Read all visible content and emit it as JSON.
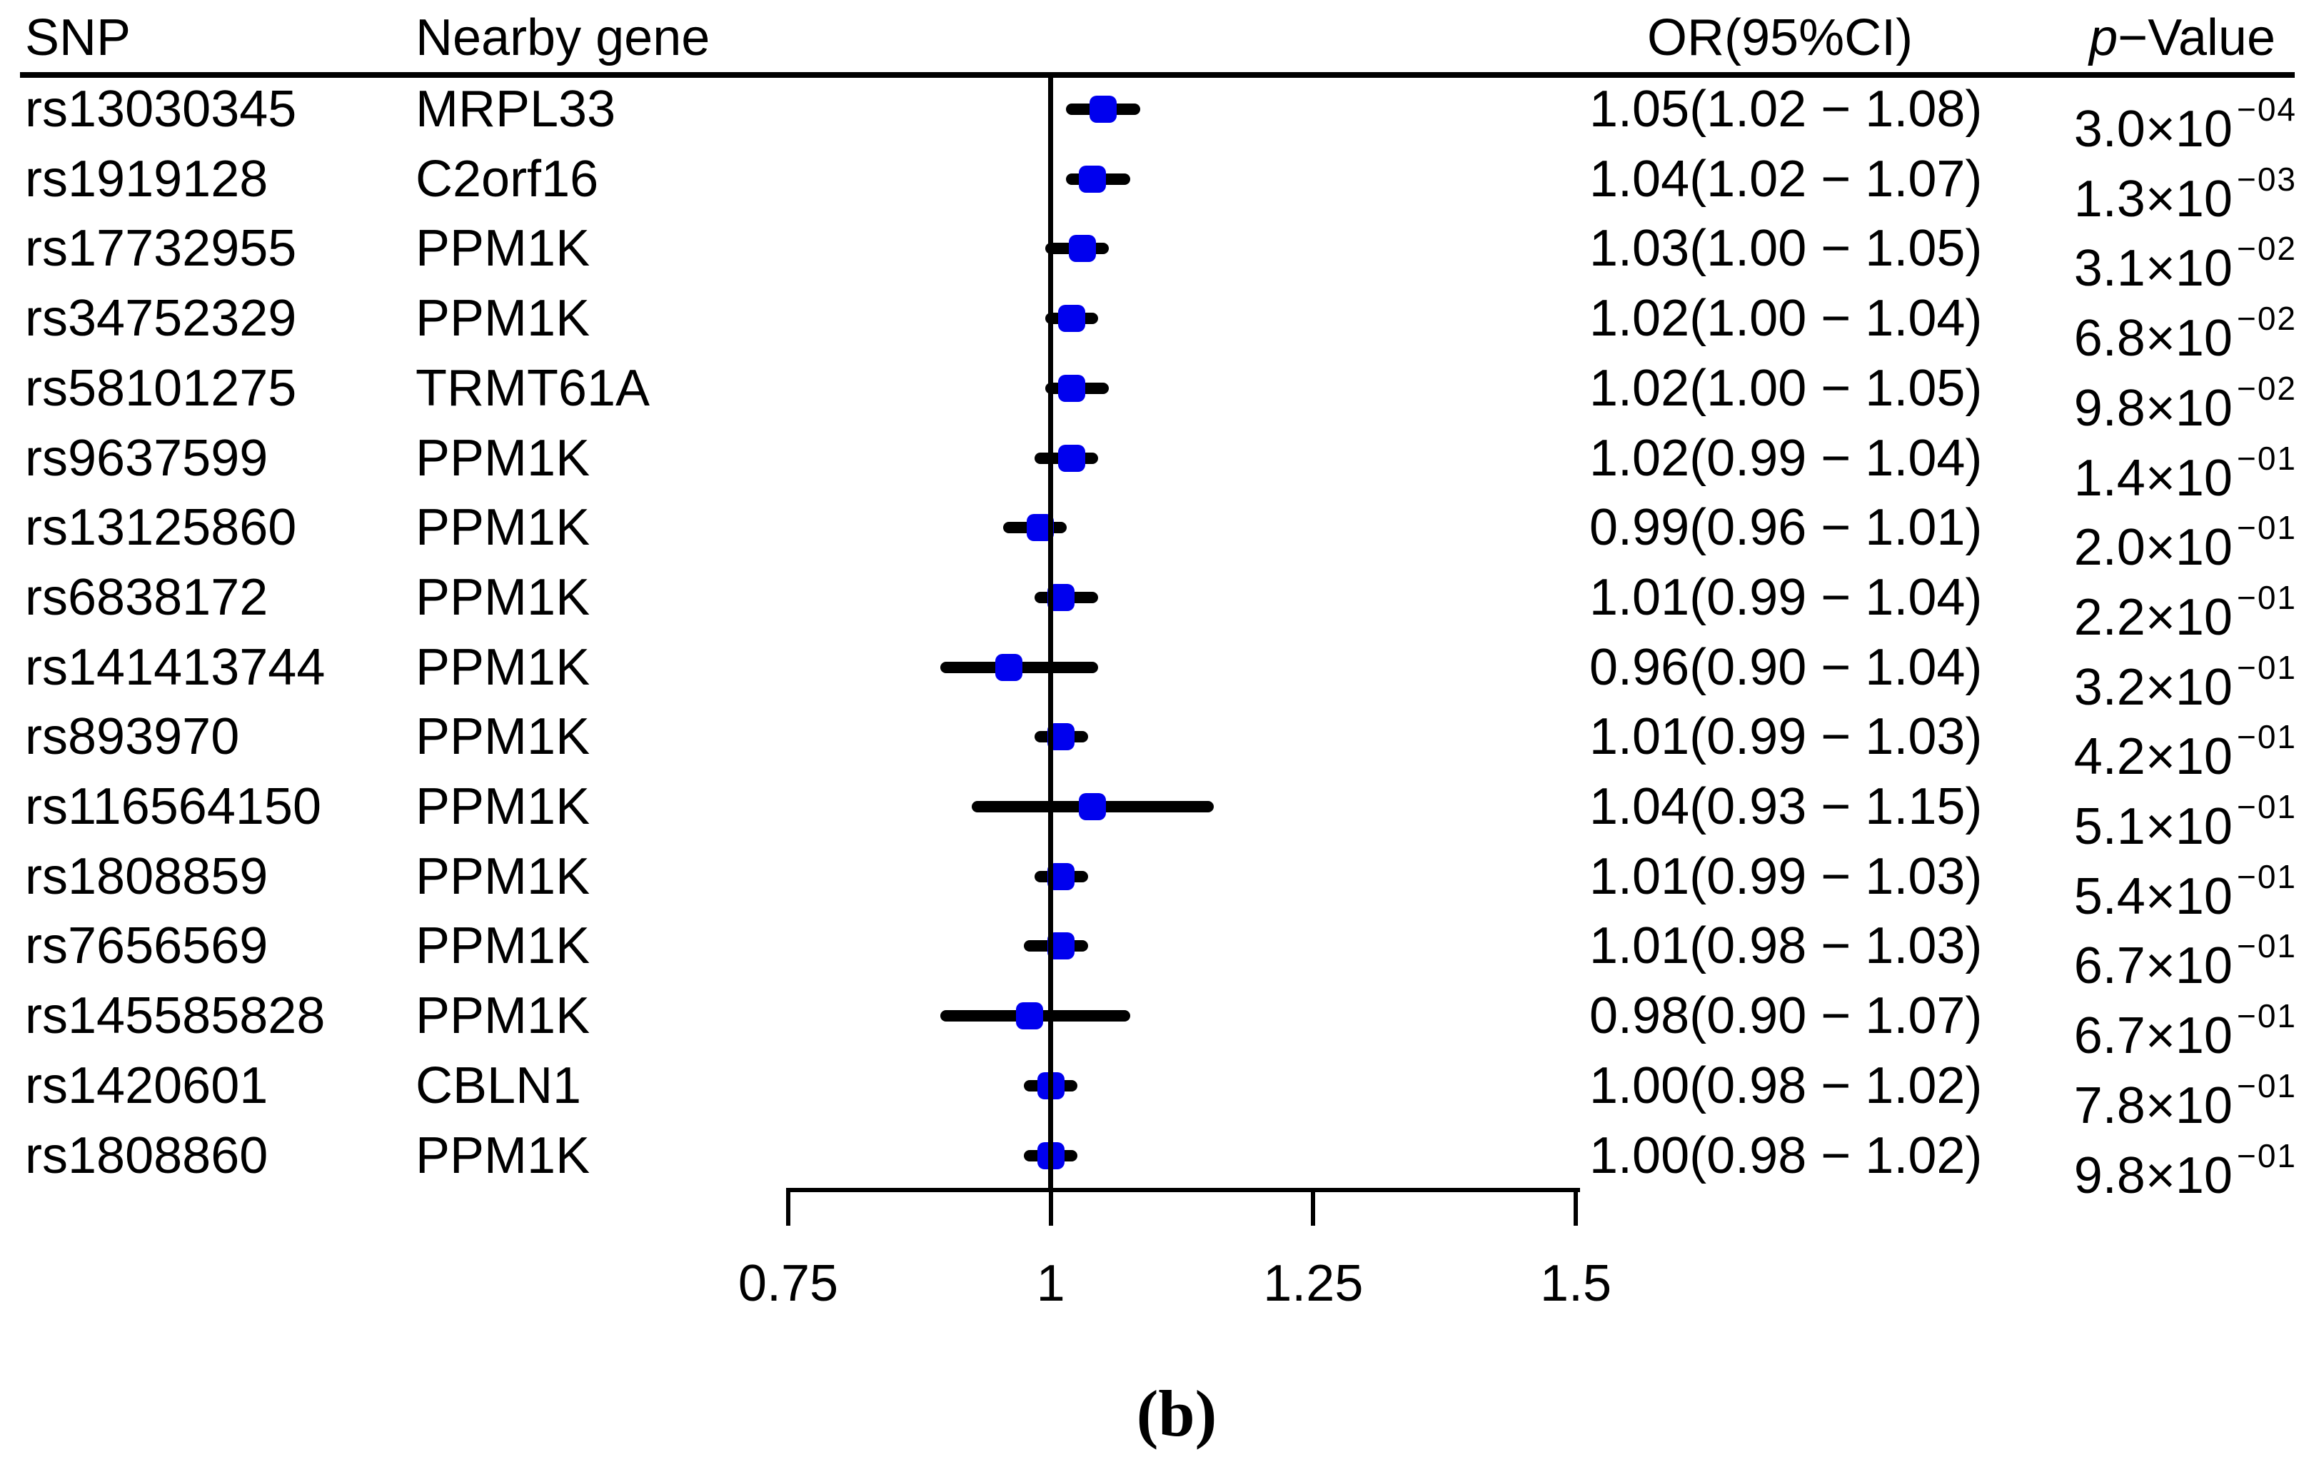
{
  "header": {
    "snp": "SNP",
    "gene": "Nearby gene",
    "or_ci": "OR(95%CI)",
    "p_italic": "p",
    "p_rest": "−Value"
  },
  "footer": {
    "panel_label": "(b)"
  },
  "chart_data": {
    "type": "scatter",
    "subtype": "forest-plot",
    "title": "",
    "xlabel": "",
    "ylabel": "",
    "x_axis": {
      "range": [
        0.75,
        1.5
      ],
      "ticks": [
        0.75,
        1.0,
        1.25,
        1.5
      ],
      "tick_labels": [
        "0.75",
        "1",
        "1.25",
        "1.5"
      ],
      "reference_line": 1.0
    },
    "marker_color": "#0000ee",
    "line_color": "#000000",
    "rows": [
      {
        "snp": "rs13030345",
        "gene": "MRPL33",
        "or": 1.05,
        "ci_low": 1.02,
        "ci_high": 1.08,
        "or_ci_text": "1.05(1.02 − 1.08)",
        "p_base": "3.0×10",
        "p_exp": "−04"
      },
      {
        "snp": "rs1919128",
        "gene": "C2orf16",
        "or": 1.04,
        "ci_low": 1.02,
        "ci_high": 1.07,
        "or_ci_text": "1.04(1.02 − 1.07)",
        "p_base": "1.3×10",
        "p_exp": "−03"
      },
      {
        "snp": "rs17732955",
        "gene": "PPM1K",
        "or": 1.03,
        "ci_low": 1.0,
        "ci_high": 1.05,
        "or_ci_text": "1.03(1.00 − 1.05)",
        "p_base": "3.1×10",
        "p_exp": "−02"
      },
      {
        "snp": "rs34752329",
        "gene": "PPM1K",
        "or": 1.02,
        "ci_low": 1.0,
        "ci_high": 1.04,
        "or_ci_text": "1.02(1.00 − 1.04)",
        "p_base": "6.8×10",
        "p_exp": "−02"
      },
      {
        "snp": "rs58101275",
        "gene": "TRMT61A",
        "or": 1.02,
        "ci_low": 1.0,
        "ci_high": 1.05,
        "or_ci_text": "1.02(1.00 − 1.05)",
        "p_base": "9.8×10",
        "p_exp": "−02"
      },
      {
        "snp": "rs9637599",
        "gene": "PPM1K",
        "or": 1.02,
        "ci_low": 0.99,
        "ci_high": 1.04,
        "or_ci_text": "1.02(0.99 − 1.04)",
        "p_base": "1.4×10",
        "p_exp": "−01"
      },
      {
        "snp": "rs13125860",
        "gene": "PPM1K",
        "or": 0.99,
        "ci_low": 0.96,
        "ci_high": 1.01,
        "or_ci_text": "0.99(0.96 − 1.01)",
        "p_base": "2.0×10",
        "p_exp": "−01"
      },
      {
        "snp": "rs6838172",
        "gene": "PPM1K",
        "or": 1.01,
        "ci_low": 0.99,
        "ci_high": 1.04,
        "or_ci_text": "1.01(0.99 − 1.04)",
        "p_base": "2.2×10",
        "p_exp": "−01"
      },
      {
        "snp": "rs141413744",
        "gene": "PPM1K",
        "or": 0.96,
        "ci_low": 0.9,
        "ci_high": 1.04,
        "or_ci_text": "0.96(0.90 − 1.04)",
        "p_base": "3.2×10",
        "p_exp": "−01"
      },
      {
        "snp": "rs893970",
        "gene": "PPM1K",
        "or": 1.01,
        "ci_low": 0.99,
        "ci_high": 1.03,
        "or_ci_text": "1.01(0.99 − 1.03)",
        "p_base": "4.2×10",
        "p_exp": "−01"
      },
      {
        "snp": "rs116564150",
        "gene": "PPM1K",
        "or": 1.04,
        "ci_low": 0.93,
        "ci_high": 1.15,
        "or_ci_text": "1.04(0.93 − 1.15)",
        "p_base": "5.1×10",
        "p_exp": "−01"
      },
      {
        "snp": "rs1808859",
        "gene": "PPM1K",
        "or": 1.01,
        "ci_low": 0.99,
        "ci_high": 1.03,
        "or_ci_text": "1.01(0.99 − 1.03)",
        "p_base": "5.4×10",
        "p_exp": "−01"
      },
      {
        "snp": "rs7656569",
        "gene": "PPM1K",
        "or": 1.01,
        "ci_low": 0.98,
        "ci_high": 1.03,
        "or_ci_text": "1.01(0.98 − 1.03)",
        "p_base": "6.7×10",
        "p_exp": "−01"
      },
      {
        "snp": "rs145585828",
        "gene": "PPM1K",
        "or": 0.98,
        "ci_low": 0.9,
        "ci_high": 1.07,
        "or_ci_text": "0.98(0.90 − 1.07)",
        "p_base": "6.7×10",
        "p_exp": "−01"
      },
      {
        "snp": "rs1420601",
        "gene": "CBLN1",
        "or": 1.0,
        "ci_low": 0.98,
        "ci_high": 1.02,
        "or_ci_text": "1.00(0.98 − 1.02)",
        "p_base": "7.8×10",
        "p_exp": "−01"
      },
      {
        "snp": "rs1808860",
        "gene": "PPM1K",
        "or": 1.0,
        "ci_low": 0.98,
        "ci_high": 1.02,
        "or_ci_text": "1.00(0.98 − 1.02)",
        "p_base": "9.8×10",
        "p_exp": "−01"
      }
    ]
  }
}
